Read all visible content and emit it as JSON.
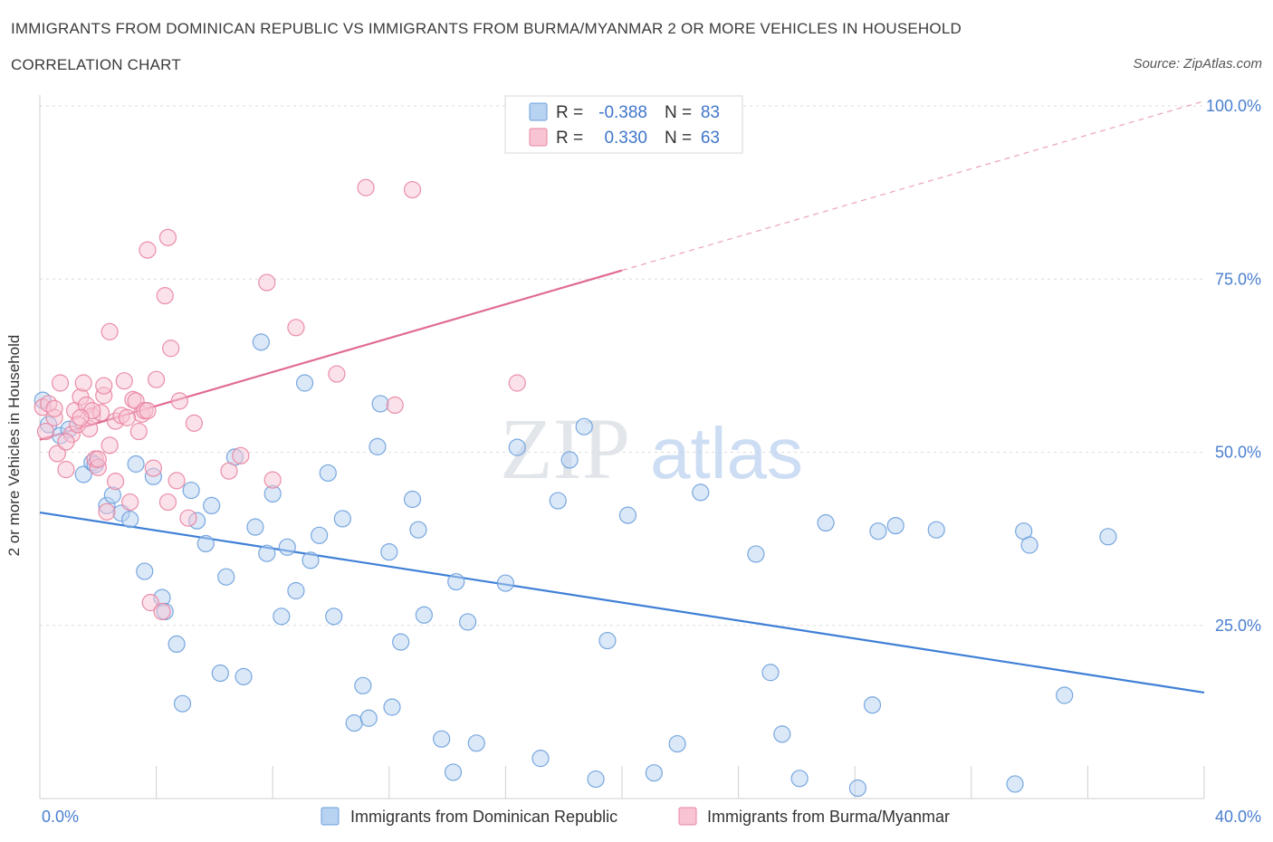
{
  "header": {
    "title": "IMMIGRANTS FROM DOMINICAN REPUBLIC VS IMMIGRANTS FROM BURMA/MYANMAR 2 OR MORE VEHICLES IN HOUSEHOLD",
    "subtitle": "CORRELATION CHART",
    "source": "Source: ZipAtlas.com"
  },
  "watermark": {
    "zip": "ZIP",
    "atlas": "atlas"
  },
  "legend_stats": [
    {
      "r_label": "R =",
      "r_value": "-0.388",
      "n_label": "N =",
      "n_value": "83"
    },
    {
      "r_label": "R =",
      "r_value": "0.330",
      "n_label": "N =",
      "n_value": "63"
    }
  ],
  "chart_data": {
    "type": "scatter",
    "title": "IMMIGRANTS FROM DOMINICAN REPUBLIC VS IMMIGRANTS FROM BURMA/MYANMAR 2 OR MORE VEHICLES IN HOUSEHOLD",
    "ylabel": "2 or more Vehicles in Household",
    "xlabel": "",
    "xlim": [
      0,
      40
    ],
    "ylim": [
      0,
      100
    ],
    "x_tick_labels": [
      "0.0%",
      "40.0%"
    ],
    "y_tick_labels": [
      "25.0%",
      "50.0%",
      "75.0%",
      "100.0%"
    ],
    "y_ticks": [
      25,
      50,
      75,
      100
    ],
    "grid": true,
    "legend_position": "bottom",
    "series": [
      {
        "name": "Immigrants from Dominican Republic",
        "color": "#6a9fdc",
        "fill": "#b8d2f2",
        "R": -0.388,
        "N": 83,
        "trend": {
          "x": [
            0,
            40
          ],
          "y": [
            41.3,
            15.3
          ]
        },
        "points": [
          [
            0.1,
            57.5
          ],
          [
            0.3,
            54
          ],
          [
            0.7,
            52.4
          ],
          [
            1.0,
            53.3
          ],
          [
            1.5,
            46.8
          ],
          [
            1.8,
            48.5
          ],
          [
            1.9,
            48.2
          ],
          [
            2.3,
            42.3
          ],
          [
            2.5,
            43.8
          ],
          [
            2.8,
            41.2
          ],
          [
            3.1,
            40.3
          ],
          [
            3.3,
            48.3
          ],
          [
            3.6,
            32.8
          ],
          [
            3.9,
            46.5
          ],
          [
            4.2,
            29
          ],
          [
            4.3,
            27
          ],
          [
            4.7,
            22.3
          ],
          [
            4.9,
            13.7
          ],
          [
            5.2,
            44.5
          ],
          [
            5.4,
            40.1
          ],
          [
            5.7,
            36.8
          ],
          [
            5.9,
            42.3
          ],
          [
            6.2,
            18.1
          ],
          [
            6.4,
            32
          ],
          [
            6.7,
            49.3
          ],
          [
            7.0,
            17.6
          ],
          [
            7.4,
            39.2
          ],
          [
            7.6,
            65.9
          ],
          [
            7.8,
            35.4
          ],
          [
            8.0,
            44
          ],
          [
            8.3,
            26.3
          ],
          [
            8.5,
            36.3
          ],
          [
            8.8,
            30
          ],
          [
            9.1,
            60
          ],
          [
            9.3,
            34.4
          ],
          [
            9.6,
            38
          ],
          [
            9.9,
            47
          ],
          [
            10.1,
            26.3
          ],
          [
            10.4,
            40.4
          ],
          [
            10.8,
            10.9
          ],
          [
            11.1,
            16.3
          ],
          [
            11.3,
            11.6
          ],
          [
            11.6,
            50.8
          ],
          [
            11.7,
            57
          ],
          [
            12.0,
            35.6
          ],
          [
            12.1,
            13.2
          ],
          [
            12.4,
            22.6
          ],
          [
            12.8,
            43.2
          ],
          [
            13.0,
            38.8
          ],
          [
            13.2,
            26.5
          ],
          [
            13.8,
            8.6
          ],
          [
            14.2,
            3.8
          ],
          [
            14.3,
            31.3
          ],
          [
            14.7,
            25.5
          ],
          [
            15.0,
            8
          ],
          [
            16.0,
            31.1
          ],
          [
            16.4,
            50.7
          ],
          [
            17.2,
            5.8
          ],
          [
            17.8,
            43
          ],
          [
            18.2,
            48.9
          ],
          [
            18.7,
            53.7
          ],
          [
            19.1,
            2.8
          ],
          [
            19.5,
            22.8
          ],
          [
            20.2,
            40.9
          ],
          [
            21.1,
            3.7
          ],
          [
            21.9,
            7.9
          ],
          [
            22.7,
            44.2
          ],
          [
            24.6,
            35.3
          ],
          [
            25.1,
            18.2
          ],
          [
            25.5,
            9.3
          ],
          [
            26.1,
            2.9
          ],
          [
            27.0,
            39.8
          ],
          [
            28.1,
            1.5
          ],
          [
            28.6,
            13.5
          ],
          [
            28.8,
            38.6
          ],
          [
            29.4,
            39.4
          ],
          [
            30.8,
            38.8
          ],
          [
            33.5,
            2.1
          ],
          [
            33.8,
            38.6
          ],
          [
            34.0,
            36.6
          ],
          [
            35.2,
            14.9
          ],
          [
            36.7,
            37.8
          ]
        ]
      },
      {
        "name": "Immigrants from Burma/Myanmar",
        "color": "#e8839f",
        "fill": "#f8c4d3",
        "R": 0.33,
        "N": 63,
        "trend": {
          "x": [
            0,
            40
          ],
          "y": [
            51.8,
            100.7
          ],
          "solid_until": 20
        },
        "points": [
          [
            0.1,
            56.5
          ],
          [
            0.2,
            53
          ],
          [
            0.3,
            57
          ],
          [
            0.5,
            55
          ],
          [
            0.6,
            49.8
          ],
          [
            0.7,
            60
          ],
          [
            0.9,
            47.5
          ],
          [
            1.1,
            52.6
          ],
          [
            1.2,
            56
          ],
          [
            1.3,
            54
          ],
          [
            1.4,
            58
          ],
          [
            1.5,
            60
          ],
          [
            1.6,
            56.8
          ],
          [
            1.7,
            53.4
          ],
          [
            1.8,
            55.2
          ],
          [
            1.9,
            49
          ],
          [
            2.0,
            47.8
          ],
          [
            2.1,
            55.7
          ],
          [
            2.2,
            58.2
          ],
          [
            2.2,
            59.6
          ],
          [
            2.3,
            41.4
          ],
          [
            2.4,
            67.4
          ],
          [
            2.4,
            51
          ],
          [
            2.6,
            45.8
          ],
          [
            2.6,
            54.5
          ],
          [
            2.8,
            55.3
          ],
          [
            2.9,
            60.3
          ],
          [
            3.1,
            42.8
          ],
          [
            3.2,
            57.6
          ],
          [
            3.3,
            57.4
          ],
          [
            3.4,
            53
          ],
          [
            3.5,
            55.5
          ],
          [
            3.6,
            56
          ],
          [
            3.7,
            79.2
          ],
          [
            3.8,
            28.3
          ],
          [
            3.9,
            47.7
          ],
          [
            4.0,
            60.5
          ],
          [
            4.2,
            27
          ],
          [
            4.3,
            72.6
          ],
          [
            4.4,
            42.8
          ],
          [
            4.4,
            81
          ],
          [
            4.5,
            65
          ],
          [
            4.7,
            45.9
          ],
          [
            4.8,
            57.4
          ],
          [
            5.1,
            40.5
          ],
          [
            5.3,
            54.2
          ],
          [
            6.5,
            47.3
          ],
          [
            6.9,
            49.5
          ],
          [
            7.8,
            74.5
          ],
          [
            8.0,
            46
          ],
          [
            8.8,
            68
          ],
          [
            10.2,
            61.3
          ],
          [
            11.2,
            88.2
          ],
          [
            12.2,
            56.8
          ],
          [
            12.8,
            87.9
          ],
          [
            16.4,
            60
          ],
          [
            0.5,
            56.3
          ],
          [
            1.8,
            56
          ],
          [
            3.0,
            55
          ],
          [
            2.0,
            49
          ],
          [
            0.9,
            51.5
          ],
          [
            1.4,
            55
          ],
          [
            3.7,
            56
          ]
        ]
      }
    ]
  }
}
